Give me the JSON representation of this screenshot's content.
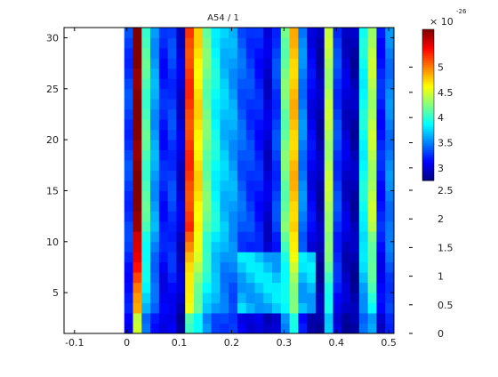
{
  "chart_data": {
    "type": "heatmap",
    "title": "A54 / 1",
    "xlabel": "",
    "ylabel": "",
    "x_range": [
      -0.12,
      0.51
    ],
    "y_range": [
      1,
      31
    ],
    "x_ticks": [
      -0.1,
      0,
      0.1,
      0.2,
      0.3,
      0.4,
      0.5
    ],
    "x_tick_labels": [
      "-0.1",
      "0",
      "0.1",
      "0.2",
      "0.3",
      "0.4",
      "0.5"
    ],
    "y_ticks": [
      5,
      10,
      15,
      20,
      25,
      30
    ],
    "y_tick_labels": [
      "5",
      "10",
      "15",
      "20",
      "25",
      "30"
    ],
    "n_columns": 31,
    "n_rows": 30,
    "data_start_x": -0.005,
    "colormap": "jet",
    "grid": false,
    "colorbar": {
      "exponent_label": "× 10",
      "exponent": "-26",
      "range": [
        2.75,
        5.75
      ],
      "colored_ticks": [
        3,
        3.5,
        4,
        4.5,
        5
      ],
      "colored_tick_labels": [
        "3",
        "3.5",
        "4",
        "4.5",
        "5"
      ],
      "lower_tick_labels": [
        "2.5",
        "2",
        "1.5",
        "1",
        "0.5",
        "0"
      ]
    },
    "profile": [
      3.3,
      5.75,
      4.1,
      3.6,
      3.2,
      3.3,
      3.0,
      5.2,
      4.7,
      4.2,
      3.9,
      3.7,
      3.6,
      3.4,
      3.3,
      3.2,
      3.0,
      3.3,
      4.2,
      4.8,
      3.5,
      3.1,
      2.9,
      4.4,
      3.3,
      3.0,
      2.9,
      3.9,
      4.4,
      3.2,
      3.5
    ]
  }
}
